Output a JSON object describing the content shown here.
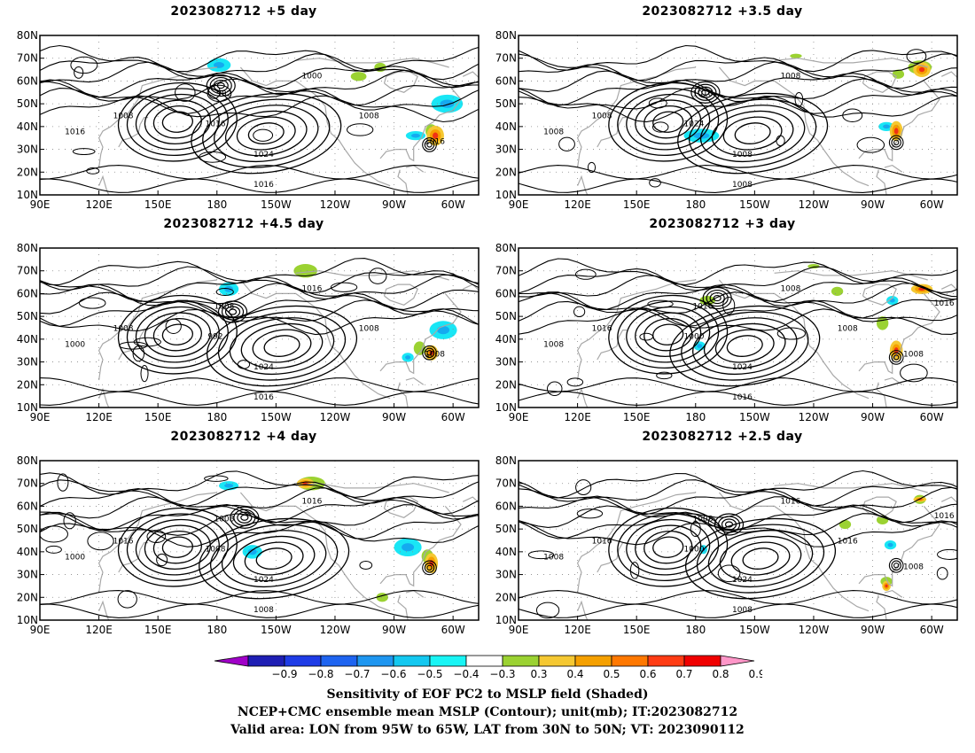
{
  "panels": [
    {
      "title": "2023082712  +5 day",
      "contour_labels": [
        "1016",
        "992",
        "1000",
        "1008",
        "1016",
        "1024",
        "1016",
        "1008",
        "1016"
      ],
      "green_patches": [
        [
          -108,
          62,
          4,
          2
        ],
        [
          -97,
          66,
          3,
          2
        ],
        [
          -71,
          38,
          3,
          3
        ]
      ],
      "warm_patches": [
        [
          -69,
          36,
          4,
          4
        ]
      ],
      "cyan_patches": [
        [
          -179,
          67,
          6,
          3
        ],
        [
          -79,
          36,
          5,
          2
        ],
        [
          -63,
          50,
          8,
          4
        ]
      ]
    },
    {
      "title": "2023082712  +3.5 day",
      "contour_labels": [
        "1008",
        "1016",
        "1008",
        "1008",
        "1024",
        "1008",
        "1008"
      ],
      "green_patches": [
        [
          -66,
          66,
          6,
          3
        ],
        [
          -129,
          71,
          3,
          1
        ],
        [
          -77,
          63,
          3,
          2
        ]
      ],
      "warm_patches": [
        [
          -78,
          38,
          3,
          4
        ],
        [
          -65,
          65,
          4,
          3
        ]
      ],
      "cyan_patches": [
        [
          -177,
          36,
          9,
          3
        ],
        [
          -83,
          40,
          4,
          2
        ]
      ]
    },
    {
      "title": "2023082712  +4.5 day",
      "contour_labels": [
        "1000",
        "1008",
        "1016",
        "1008",
        "992",
        "1024",
        "1016",
        "1008",
        "1008"
      ],
      "green_patches": [
        [
          -135,
          70,
          6,
          3
        ],
        [
          -77,
          36,
          3,
          3
        ]
      ],
      "warm_patches": [
        [
          -71,
          34,
          3,
          3
        ]
      ],
      "cyan_patches": [
        [
          -174,
          62,
          5,
          3
        ],
        [
          -65,
          44,
          7,
          4
        ],
        [
          -83,
          32,
          3,
          2
        ]
      ]
    },
    {
      "title": "2023082712  +3 day",
      "contour_labels": [
        "1008",
        "1016",
        "1008",
        "1016",
        "1000",
        "1024",
        "1016",
        "1008",
        "1008",
        "1016"
      ],
      "green_patches": [
        [
          -85,
          47,
          3,
          3
        ],
        [
          -120,
          72,
          3,
          1
        ],
        [
          -174,
          57,
          4,
          2
        ],
        [
          -108,
          61,
          3,
          2
        ]
      ],
      "warm_patches": [
        [
          -65,
          62,
          5,
          2
        ],
        [
          -78,
          35,
          3,
          4
        ]
      ],
      "cyan_patches": [
        [
          -178,
          37,
          3,
          2
        ],
        [
          -80,
          57,
          3,
          2
        ]
      ]
    },
    {
      "title": "2023082712  +4 day",
      "contour_labels": [
        "1000",
        "1008",
        "1016",
        "1016",
        "1008",
        "1024",
        "1008"
      ],
      "green_patches": [
        [
          -132,
          70,
          7,
          3
        ],
        [
          -96,
          20,
          3,
          2
        ],
        [
          -73,
          38,
          3,
          3
        ]
      ],
      "warm_patches": [
        [
          -135,
          70,
          4,
          2
        ],
        [
          -71,
          35,
          3,
          4
        ]
      ],
      "cyan_patches": [
        [
          -174,
          69,
          5,
          2
        ],
        [
          -83,
          42,
          7,
          4
        ],
        [
          -162,
          40,
          5,
          3
        ]
      ]
    },
    {
      "title": "2023082712  +2.5 day",
      "contour_labels": [
        "1008",
        "1008",
        "1016",
        "1016",
        "1000",
        "1024",
        "1008",
        "1016",
        "1008",
        "1016"
      ],
      "green_patches": [
        [
          -104,
          52,
          3,
          2
        ],
        [
          -85,
          54,
          3,
          2
        ],
        [
          -66,
          63,
          3,
          2
        ],
        [
          -83,
          27,
          3,
          2
        ]
      ],
      "warm_patches": [
        [
          -83,
          25,
          2,
          2
        ],
        [
          -66,
          63,
          3,
          1
        ]
      ],
      "cyan_patches": [
        [
          -176,
          41,
          2,
          2
        ],
        [
          -81,
          43,
          3,
          2
        ]
      ]
    }
  ],
  "y_tick_labels": [
    "10N",
    "20N",
    "30N",
    "40N",
    "50N",
    "60N",
    "70N",
    "80N"
  ],
  "x_tick_labels": [
    "90E",
    "120E",
    "150E",
    "180",
    "150W",
    "120W",
    "90W",
    "60W"
  ],
  "colorbar": {
    "tick_labels": [
      "−0.9",
      "−0.8",
      "−0.7",
      "−0.6",
      "−0.5",
      "−0.4",
      "−0.3",
      "0.3",
      "0.4",
      "0.5",
      "0.6",
      "0.7",
      "0.8",
      "0.9"
    ],
    "colors": [
      "#a000c8",
      "#1e1eb4",
      "#1e3ce6",
      "#1e64f0",
      "#1e96f0",
      "#14c8f0",
      "#19f5f5",
      "#ffffff",
      "#9bd232",
      "#f5c832",
      "#f5a000",
      "#ff7800",
      "#ff3c14",
      "#f00000",
      "#ff96c8"
    ]
  },
  "footer": {
    "line1": "Sensitivity of EOF PC2 to MSLP field (Shaded)",
    "line2": "NCEP+CMC ensemble mean MSLP (Contour); unit(mb); IT:2023082712",
    "line3": "Valid area: LON from 95W to 65W, LAT from 30N to 50N; VT: 2023090112"
  }
}
